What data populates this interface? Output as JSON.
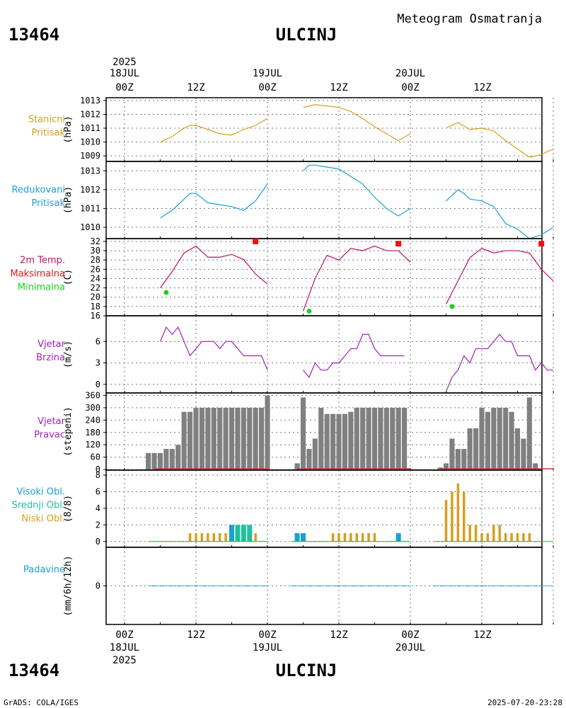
{
  "header": {
    "station_id": "13464",
    "station_name": "ULCINJ",
    "product": "Meteogram Osmatranja",
    "year": "2025",
    "footer_left": "GrADS: COLA/IGES",
    "footer_right": "2025-07-20-23:28"
  },
  "time_axis": {
    "days": [
      "18JUL",
      "19JUL",
      "20JUL"
    ],
    "hour_labels": [
      "00Z",
      "12Z",
      "00Z",
      "12Z",
      "00Z",
      "12Z"
    ]
  },
  "colors": {
    "station_pressure": "#d4a020",
    "reduced_pressure": "#1aa0d4",
    "temperature": "#c0106a",
    "max_temp": "#ee1111",
    "min_temp": "#22cc22",
    "wind": "#a020b8",
    "wind_dir_bar": "#808080",
    "high_clouds": "#1aa0d4",
    "mid_clouds": "#20c0a0",
    "low_clouds": "#d4a020",
    "precip": "#1aa0d4",
    "label_station": "#d4a020",
    "label_reduced": "#1aa0d4",
    "label_temp": "#c0106a",
    "label_max": "#ee1111",
    "label_min": "#22cc22",
    "label_wind": "#a020b8",
    "label_high": "#1aa0d4",
    "label_mid": "#20c0a0",
    "label_low": "#d4a020"
  },
  "chart_data": [
    {
      "type": "line",
      "panel": "station_pressure",
      "labels": [
        "Stanicni",
        "Pritisak"
      ],
      "ylabel": "(hPa)",
      "ylim": [
        1008.6,
        1013.2
      ],
      "yticks": [
        1009,
        1010,
        1011,
        1012,
        1013
      ],
      "segments": [
        {
          "x": [
            6,
            8,
            10,
            11,
            12,
            14,
            16,
            18,
            20,
            22,
            24
          ],
          "y": [
            1010.0,
            1010.4,
            1011.0,
            1011.2,
            1011.2,
            1010.9,
            1010.6,
            1010.5,
            1010.9,
            1011.2,
            1011.7
          ]
        },
        {
          "x": [
            30,
            32,
            34,
            36,
            38,
            40,
            42,
            44,
            46,
            48
          ],
          "y": [
            1012.5,
            1012.7,
            1012.6,
            1012.5,
            1012.2,
            1011.7,
            1011.1,
            1010.6,
            1010.1,
            1010.6
          ]
        },
        {
          "x": [
            54,
            56,
            58,
            60,
            62,
            64,
            66,
            68,
            70,
            72
          ],
          "y": [
            1011.0,
            1011.4,
            1010.9,
            1011.0,
            1010.8,
            1010.1,
            1009.5,
            1008.9,
            1009.1,
            1009.5
          ]
        }
      ]
    },
    {
      "type": "line",
      "panel": "reduced_pressure",
      "labels": [
        "Redukovani",
        "Pritisak"
      ],
      "ylabel": "(hPa)",
      "ylim": [
        1009.4,
        1013.5
      ],
      "yticks": [
        1010,
        1011,
        1012,
        1013
      ],
      "segments": [
        {
          "x": [
            6,
            8,
            10,
            11,
            12,
            14,
            16,
            18,
            20,
            22,
            24
          ],
          "y": [
            1010.5,
            1010.9,
            1011.5,
            1011.8,
            1011.8,
            1011.3,
            1011.2,
            1011.1,
            1010.9,
            1011.4,
            1012.3
          ]
        },
        {
          "x": [
            30,
            31,
            32,
            34,
            36,
            38,
            40,
            42,
            44,
            46,
            48
          ],
          "y": [
            1013.0,
            1013.3,
            1013.3,
            1013.2,
            1013.1,
            1012.7,
            1012.3,
            1011.6,
            1011.0,
            1010.6,
            1011.0
          ]
        },
        {
          "x": [
            54,
            56,
            57,
            58,
            60,
            62,
            64,
            66,
            68,
            70,
            72
          ],
          "y": [
            1011.4,
            1012.0,
            1011.8,
            1011.5,
            1011.4,
            1011.1,
            1010.2,
            1009.9,
            1009.4,
            1009.6,
            1010.0
          ]
        }
      ]
    },
    {
      "type": "line",
      "panel": "temperature",
      "labels": [
        "2m Temp.",
        "Maksimalna",
        "Minimalna"
      ],
      "ylabel": "(C)",
      "ylim": [
        16,
        32.6
      ],
      "yticks": [
        16,
        18,
        20,
        22,
        24,
        26,
        28,
        30,
        32
      ],
      "segments": [
        {
          "x": [
            6,
            8,
            10,
            12,
            14,
            16,
            18,
            20,
            22,
            24
          ],
          "y": [
            22.0,
            25.5,
            29.5,
            31.0,
            28.6,
            28.6,
            29.2,
            28.1,
            25.0,
            22.8
          ]
        },
        {
          "x": [
            30,
            32,
            34,
            36,
            38,
            40,
            42,
            44,
            46,
            48
          ],
          "y": [
            17.0,
            24.0,
            29.0,
            28.0,
            30.5,
            30.0,
            31.0,
            30.0,
            30.0,
            27.5
          ]
        },
        {
          "x": [
            54,
            56,
            58,
            60,
            62,
            64,
            66,
            68,
            70,
            72
          ],
          "y": [
            18.5,
            23.5,
            28.5,
            30.5,
            29.5,
            30.0,
            30.0,
            29.5,
            26.0,
            23.5
          ]
        }
      ],
      "max_points": {
        "x": [
          22,
          46,
          70
        ],
        "y": [
          32.0,
          31.5,
          31.5
        ]
      },
      "min_points": {
        "x": [
          7,
          31,
          55
        ],
        "y": [
          21.0,
          17.0,
          18.0
        ]
      }
    },
    {
      "type": "line",
      "panel": "wind_speed",
      "labels": [
        "Vjetar",
        "Brzina"
      ],
      "ylabel": "(m/s)",
      "ylim": [
        -1.2,
        9.6
      ],
      "yticks": [
        0,
        3,
        6
      ],
      "segments": [
        {
          "x": [
            6,
            7,
            8,
            9,
            10,
            11,
            12,
            13,
            14,
            15,
            16,
            17,
            18,
            19,
            20,
            21,
            22,
            23,
            24
          ],
          "y": [
            6,
            8,
            7,
            8,
            6,
            4,
            5,
            6,
            6,
            6,
            5,
            6,
            6,
            5,
            4,
            4,
            4,
            4,
            2
          ]
        },
        {
          "x": [
            30,
            31,
            32,
            33,
            34,
            35,
            36,
            37,
            38,
            39,
            40,
            41,
            42,
            43,
            44,
            45,
            46,
            47
          ],
          "y": [
            2,
            1,
            3,
            2,
            2,
            3,
            3,
            4,
            5,
            5,
            7,
            7,
            5,
            4,
            4,
            4,
            4,
            4
          ]
        },
        {
          "x": [
            54,
            55,
            56,
            57,
            58,
            59,
            60,
            61,
            62,
            63,
            64,
            65,
            66,
            67,
            68,
            69,
            70,
            71,
            72
          ],
          "y": [
            -1,
            1,
            2,
            4,
            3,
            5,
            5,
            5,
            6,
            7,
            6,
            6,
            4,
            4,
            4,
            2,
            3,
            2,
            2
          ]
        }
      ]
    },
    {
      "type": "bar",
      "panel": "wind_direction",
      "labels": [
        "Vjetar",
        "Pravac"
      ],
      "ylabel": "(stepeni)",
      "ylim": [
        -3,
        372
      ],
      "yticks": [
        0,
        60,
        120,
        180,
        240,
        300,
        360
      ],
      "x": [
        4,
        5,
        6,
        7,
        8,
        9,
        10,
        11,
        12,
        13,
        14,
        15,
        16,
        17,
        18,
        19,
        20,
        21,
        22,
        23,
        24,
        29,
        30,
        31,
        32,
        33,
        34,
        35,
        36,
        37,
        38,
        39,
        40,
        41,
        42,
        43,
        44,
        45,
        46,
        47,
        53,
        54,
        55,
        56,
        57,
        58,
        59,
        60,
        61,
        62,
        63,
        64,
        65,
        66,
        67,
        68,
        69,
        70,
        71,
        72
      ],
      "values": [
        80,
        80,
        80,
        100,
        100,
        120,
        280,
        280,
        300,
        300,
        300,
        300,
        300,
        300,
        300,
        300,
        300,
        300,
        300,
        300,
        360,
        30,
        350,
        100,
        150,
        300,
        270,
        270,
        270,
        270,
        280,
        300,
        300,
        300,
        300,
        300,
        300,
        300,
        300,
        300,
        10,
        30,
        150,
        100,
        100,
        200,
        200,
        300,
        280,
        300,
        300,
        300,
        280,
        200,
        150,
        350,
        30,
        0,
        0,
        0
      ]
    },
    {
      "type": "bar",
      "panel": "clouds",
      "labels": [
        "Visoki Obl.",
        "Srednji Obl.",
        "Niski Obl."
      ],
      "ylabel": "(8/8)",
      "ylim": [
        -0.7,
        8.6
      ],
      "yticks": [
        0,
        2,
        4,
        6,
        8
      ],
      "low": {
        "x": [
          11,
          12,
          13,
          14,
          15,
          16,
          17,
          18,
          19,
          20,
          21,
          22,
          35,
          36,
          37,
          38,
          39,
          40,
          41,
          42,
          54,
          55,
          56,
          57,
          58,
          59,
          60,
          61,
          62,
          63,
          64,
          65,
          66,
          67,
          68,
          69,
          70
        ],
        "values": [
          1,
          1,
          1,
          1,
          1,
          1,
          1,
          1,
          1,
          1,
          1,
          1,
          1,
          1,
          1,
          1,
          1,
          1,
          1,
          1,
          5,
          6,
          7,
          6,
          2,
          2,
          1,
          1,
          2,
          2,
          1,
          1,
          1,
          1,
          1,
          0,
          0
        ]
      },
      "mid": {
        "x": [
          19,
          20,
          21
        ],
        "values": [
          2,
          2,
          2
        ]
      },
      "high": {
        "x": [
          18,
          29,
          30,
          46
        ],
        "values": [
          2,
          1,
          1,
          1
        ]
      }
    },
    {
      "type": "line",
      "panel": "precipitation",
      "labels": [
        "Padavine"
      ],
      "ylabel": "(mm/6h/12h)",
      "ylim": [
        -3,
        3
      ],
      "yticks": [
        0
      ],
      "segments": [
        {
          "x": [
            4,
            24
          ],
          "y": [
            0,
            0
          ]
        },
        {
          "x": [
            28,
            48
          ],
          "y": [
            0,
            0
          ]
        },
        {
          "x": [
            52,
            72
          ],
          "y": [
            0,
            0
          ]
        }
      ]
    }
  ]
}
